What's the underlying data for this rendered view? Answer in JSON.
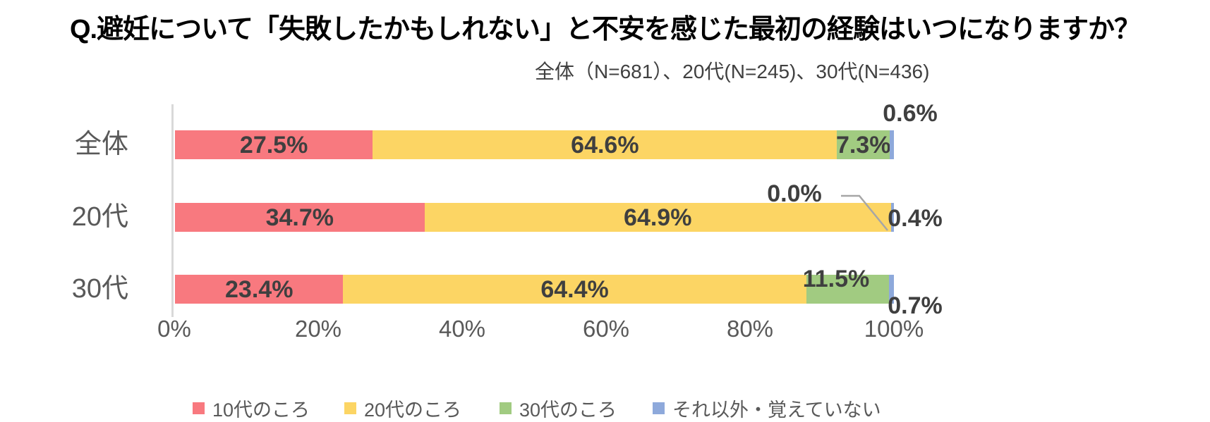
{
  "title": "Q.避妊について「失敗したかもしれない」と不安を感じた最初の経験はいつになりますか？",
  "subtitle": "全体（N=681）、20代(N=245)、30代(N=436)",
  "chart_data": {
    "type": "bar",
    "orientation": "horizontal",
    "stacked": true,
    "unit": "%",
    "title": "Q.避妊について「失敗したかもしれない」と不安を感じた最初の経験はいつになりますか？",
    "subtitle": "全体（N=681）、20代(N=245)、30代(N=436)",
    "categories": [
      "全体",
      "20代",
      "30代"
    ],
    "series": [
      {
        "name": "10代のころ",
        "color": "#F8797F",
        "values": [
          27.5,
          34.7,
          23.4
        ]
      },
      {
        "name": "20代のころ",
        "color": "#FCD564",
        "values": [
          64.6,
          64.9,
          64.4
        ]
      },
      {
        "name": "30代のころ",
        "color": "#A1CB81",
        "values": [
          7.3,
          0.0,
          11.5
        ]
      },
      {
        "name": "それ以外・覚えていない",
        "color": "#8EA9DB",
        "values": [
          0.6,
          0.4,
          0.7
        ]
      }
    ],
    "data_labels": [
      [
        "27.5%",
        "64.6%",
        "7.3%",
        "0.6%"
      ],
      [
        "34.7%",
        "64.9%",
        "0.0%",
        "0.4%"
      ],
      [
        "23.4%",
        "64.4%",
        "11.5%",
        "0.7%"
      ]
    ],
    "xticks": [
      "0%",
      "20%",
      "40%",
      "60%",
      "80%",
      "100%"
    ],
    "xlim": [
      0,
      100
    ],
    "grid": false,
    "legend_position": "bottom"
  },
  "colors": {
    "background": "#FFFFFF",
    "title_text": "#000000",
    "data_label_text": "#3F3F3F",
    "axis_text": "#595959",
    "axis_line": "#D9D9D9",
    "leader_line": "#A6A6A6"
  }
}
